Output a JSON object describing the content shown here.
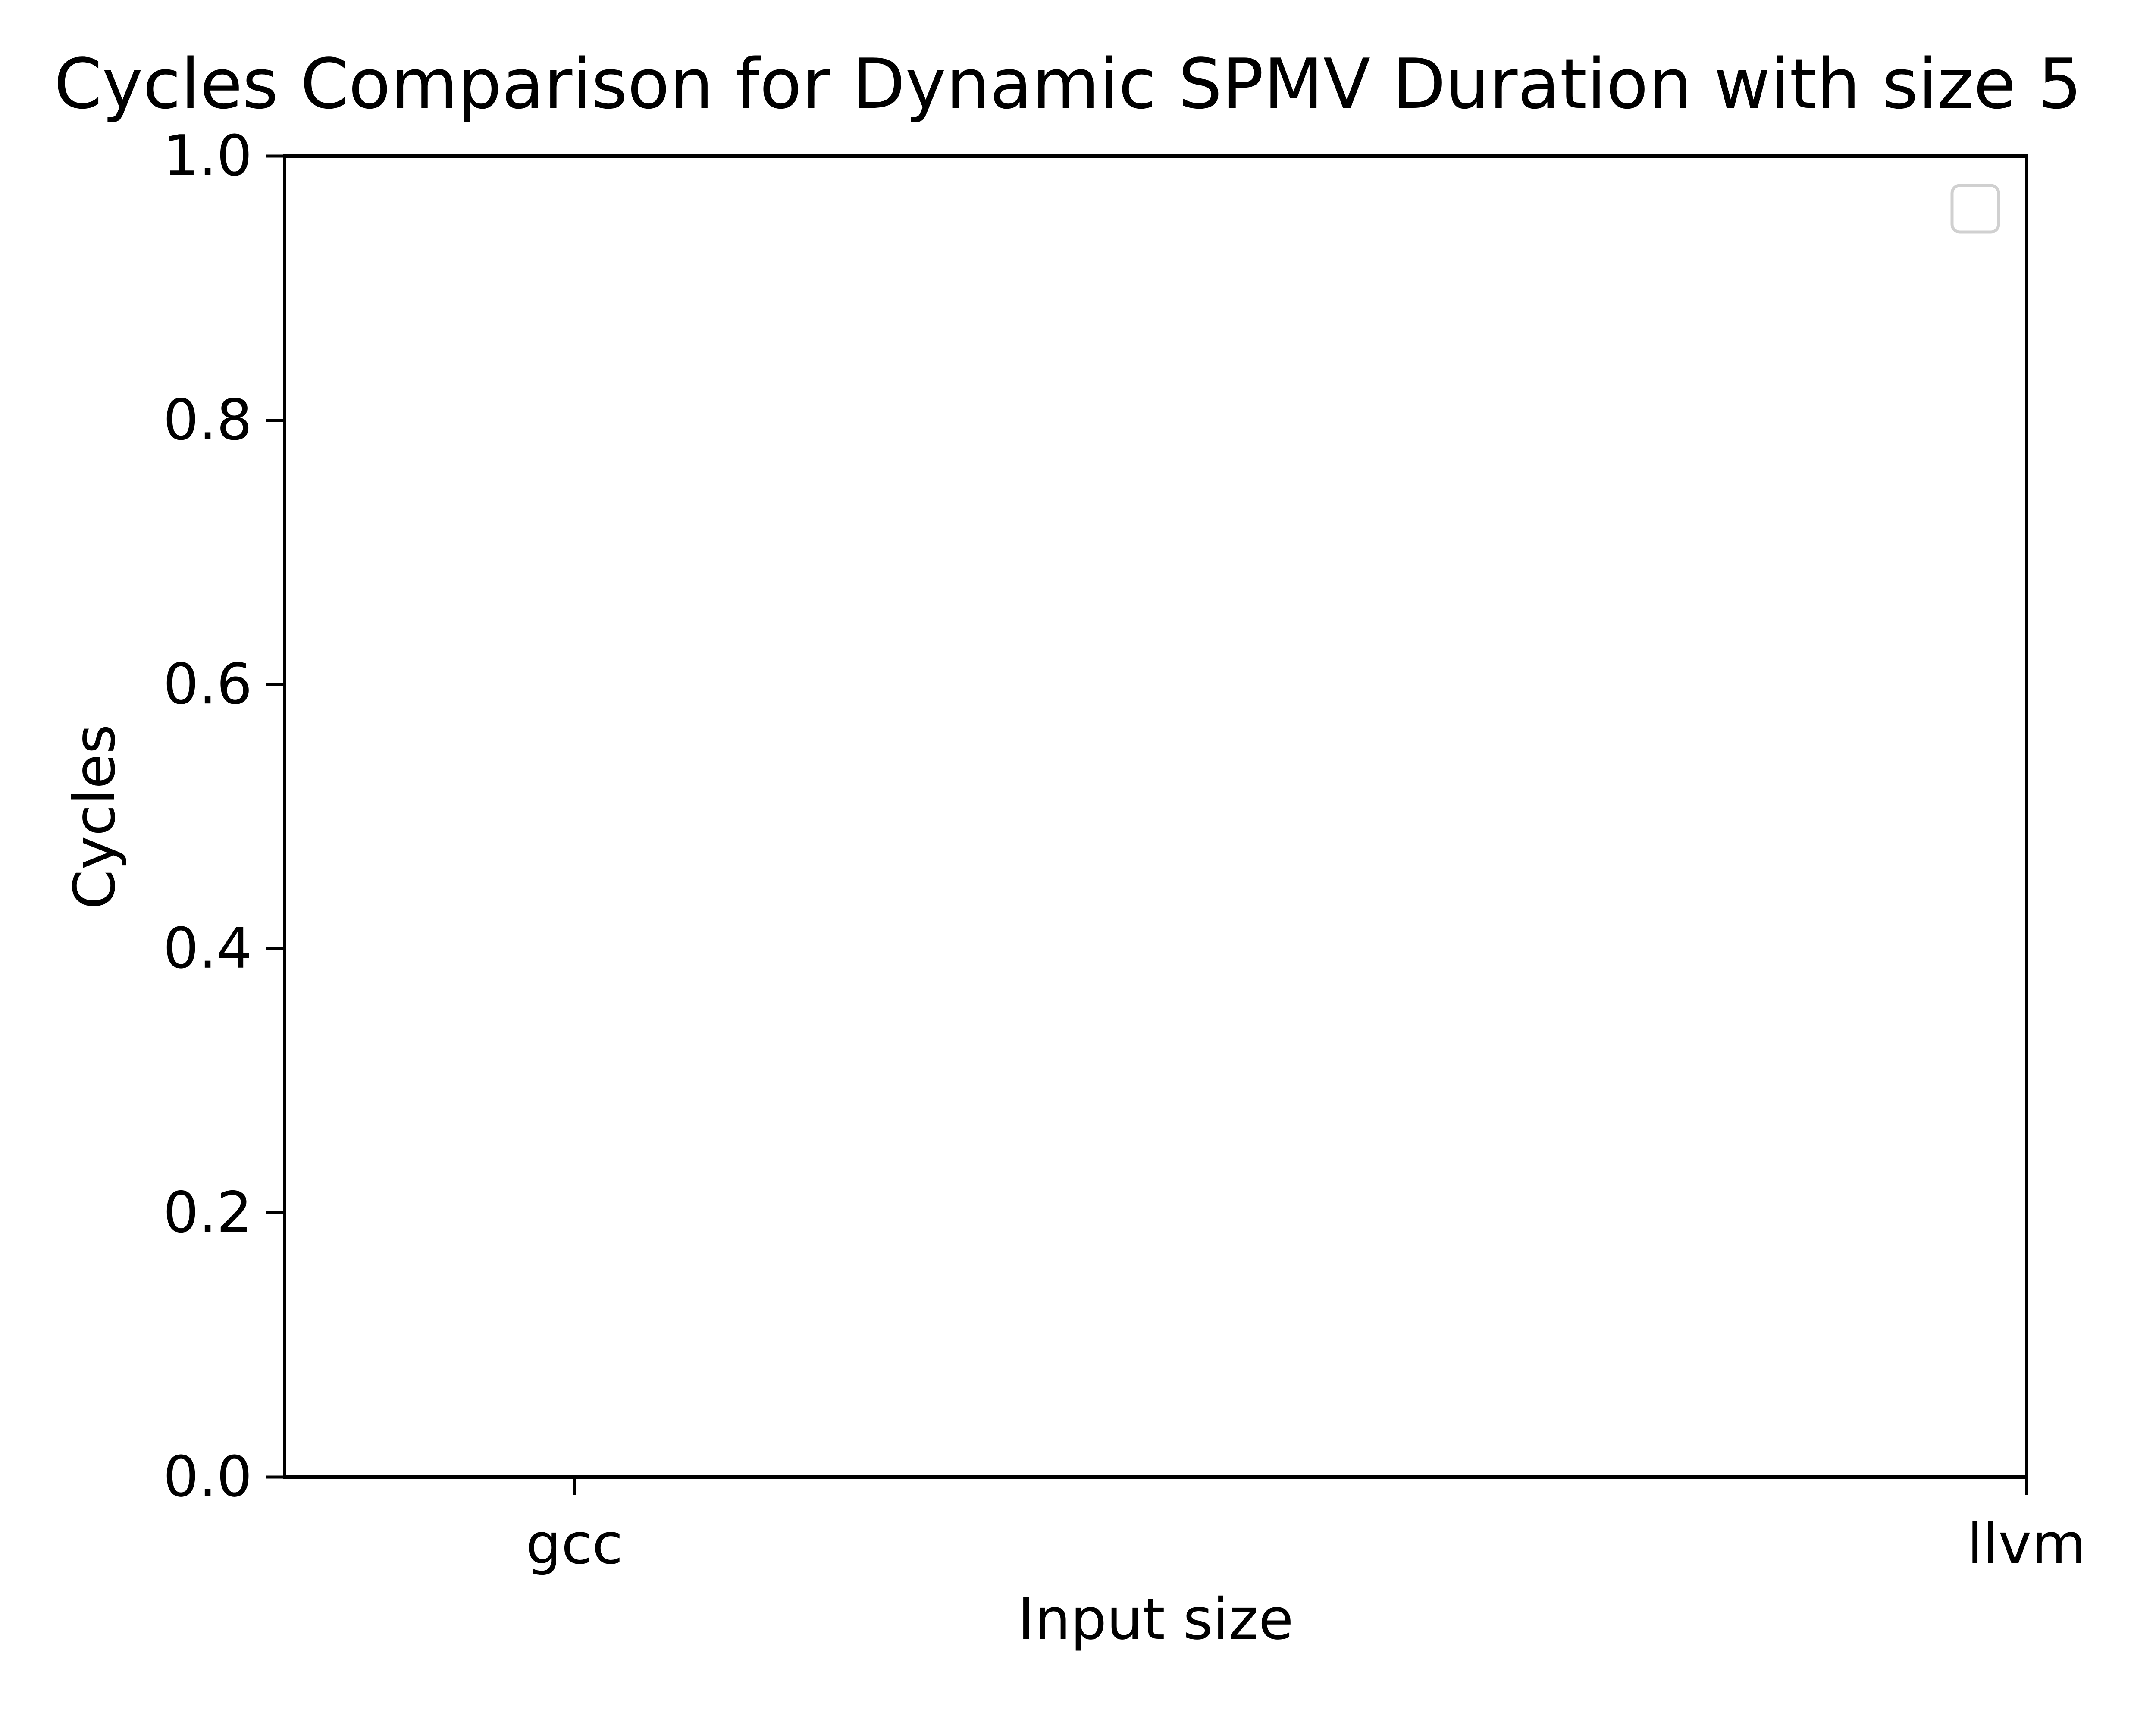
{
  "chart_data": {
    "type": "bar",
    "title": "Cycles Comparison for Dynamic SPMV Duration with size 5",
    "xlabel": "Input size",
    "ylabel": "Cycles",
    "categories": [
      "gcc",
      "llvm"
    ],
    "x_tick_labels": [
      "gcc",
      "llvm"
    ],
    "y_ticks": [
      0.0,
      0.2,
      0.4,
      0.6,
      0.8,
      1.0
    ],
    "y_tick_labels": [
      "0.0",
      "0.2",
      "0.4",
      "0.6",
      "0.8",
      "1.0"
    ],
    "ylim": [
      0,
      1
    ],
    "series": [],
    "legend": {
      "position": "top-right",
      "entries": []
    },
    "grid": false
  }
}
